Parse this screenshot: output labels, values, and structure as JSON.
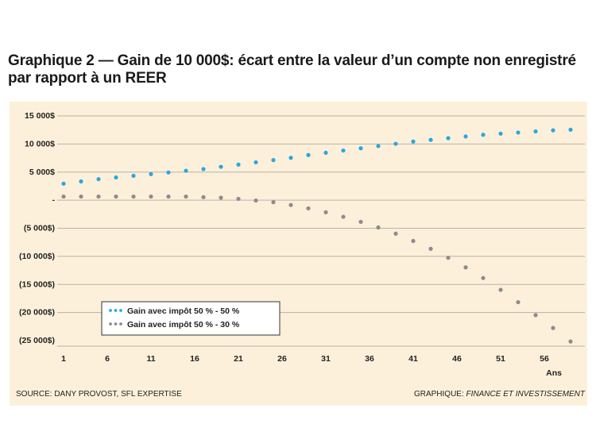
{
  "header": {
    "title": "Graphique 2 — Gain de 10 000$: écart entre la valeur d’un compte non enregistré par rapport à un REER"
  },
  "footer": {
    "source": "SOURCE: DANY PROVOST, SFL EXPERTISE",
    "credit_prefix": "GRAPHIQUE:",
    "credit_name": "FINANCE ET INVESTISSEMENT"
  },
  "colors": {
    "background": "#fdf0da",
    "series1": "#29a8e0",
    "series2": "#8c8c8c"
  },
  "chart_data": {
    "type": "scatter",
    "title": "Graphique 2 — Gain de 10 000$: écart entre la valeur d’un compte non enregistré par rapport à un REER",
    "xlabel": "Ans",
    "ylabel": "",
    "xlim": [
      1,
      60
    ],
    "ylim": [
      -25000,
      15000
    ],
    "grid": true,
    "legend_position": "bottom-left",
    "x_ticks": [
      "1",
      "6",
      "11",
      "16",
      "21",
      "26",
      "31",
      "36",
      "41",
      "46",
      "51",
      "56"
    ],
    "y_ticks": [
      {
        "value": 15000,
        "label": "15 000$"
      },
      {
        "value": 10000,
        "label": "10 000$"
      },
      {
        "value": 5000,
        "label": "5 000$"
      },
      {
        "value": 0,
        "label": "-"
      },
      {
        "value": -5000,
        "label": "(5 000$)"
      },
      {
        "value": -10000,
        "label": "(10 000$)"
      },
      {
        "value": -15000,
        "label": "(15 000$)"
      },
      {
        "value": -20000,
        "label": "(20 000$)"
      },
      {
        "value": -25000,
        "label": "(25 000$)"
      }
    ],
    "x": [
      1,
      3,
      5,
      7,
      9,
      11,
      13,
      15,
      17,
      19,
      21,
      23,
      25,
      27,
      29,
      31,
      33,
      35,
      37,
      39,
      41,
      43,
      45,
      47,
      49,
      51,
      53,
      55,
      57,
      59
    ],
    "series": [
      {
        "name": "Gain avec impôt 50 % - 50 %",
        "values": [
          2800,
          3200,
          3600,
          3900,
          4200,
          4500,
          4800,
          5100,
          5400,
          5800,
          6200,
          6600,
          7000,
          7400,
          7900,
          8300,
          8700,
          9100,
          9500,
          9900,
          10300,
          10600,
          10900,
          11200,
          11500,
          11700,
          11900,
          12100,
          12300,
          12400
        ]
      },
      {
        "name": "Gain avec impôt 50 % - 30 %",
        "values": [
          500,
          500,
          500,
          500,
          500,
          500,
          500,
          500,
          400,
          300,
          100,
          -200,
          -500,
          -1000,
          -1600,
          -2300,
          -3100,
          -4000,
          -5000,
          -6100,
          -7400,
          -8800,
          -10400,
          -12100,
          -14000,
          -16100,
          -18300,
          -20600,
          -22900,
          -25300
        ]
      }
    ]
  }
}
